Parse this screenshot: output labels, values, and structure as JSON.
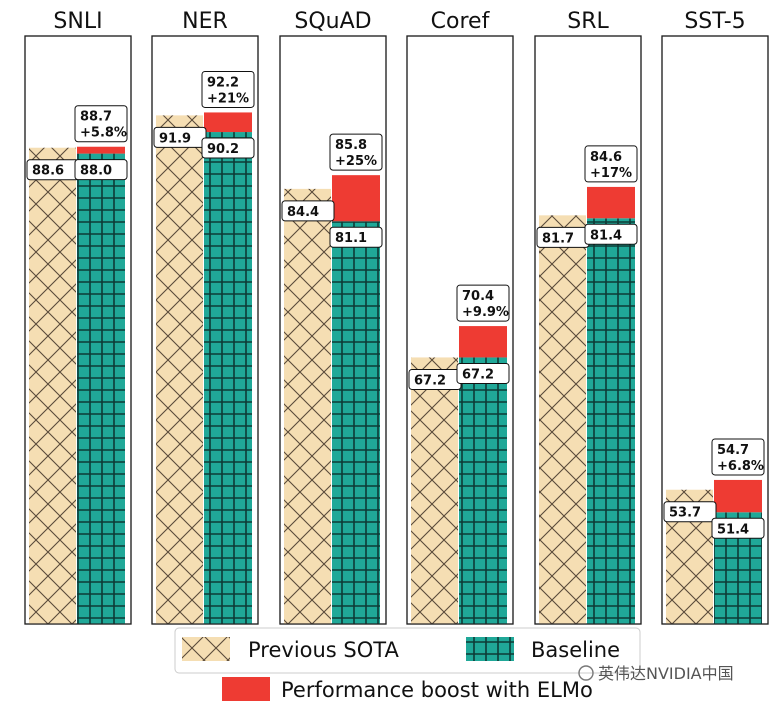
{
  "chart_data": {
    "type": "bar",
    "ylim": [
      40,
      100
    ],
    "panels": [
      {
        "title": "SNLI",
        "previous_sota": 88.6,
        "baseline": 88.0,
        "elmo": 88.7,
        "sota_label": "88.6",
        "baseline_label": "88.0",
        "elmo_label": "88.7",
        "boost_label": "+5.8%"
      },
      {
        "title": "NER",
        "previous_sota": 91.9,
        "baseline": 90.2,
        "elmo": 92.2,
        "sota_label": "91.9",
        "baseline_label": "90.2",
        "elmo_label": "92.2",
        "boost_label": "+21%"
      },
      {
        "title": "SQuAD",
        "previous_sota": 84.4,
        "baseline": 81.1,
        "elmo": 85.8,
        "sota_label": "84.4",
        "baseline_label": "81.1",
        "elmo_label": "85.8",
        "boost_label": "+25%"
      },
      {
        "title": "Coref",
        "previous_sota": 67.2,
        "baseline": 67.2,
        "elmo": 70.4,
        "sota_label": "67.2",
        "baseline_label": "67.2",
        "elmo_label": "70.4",
        "boost_label": "+9.9%"
      },
      {
        "title": "SRL",
        "previous_sota": 81.7,
        "baseline": 81.4,
        "elmo": 84.6,
        "sota_label": "81.7",
        "baseline_label": "81.4",
        "elmo_label": "84.6",
        "boost_label": "+17%"
      },
      {
        "title": "SST-5",
        "previous_sota": 53.7,
        "baseline": 51.4,
        "elmo": 54.7,
        "sota_label": "53.7",
        "baseline_label": "51.4",
        "elmo_label": "54.7",
        "boost_label": "+6.8%"
      }
    ],
    "legend": {
      "previous_sota": "Previous SOTA",
      "baseline": "Baseline",
      "boost": "Performance boost with ELMo"
    }
  },
  "colors": {
    "sota_fill": "#f5deb3",
    "sota_hatch": "#5a4a3a",
    "baseline_fill": "#20a898",
    "baseline_grid": "#0d3b36",
    "boost": "#ee3b33"
  },
  "watermark": "英伟达NVIDIA中国"
}
